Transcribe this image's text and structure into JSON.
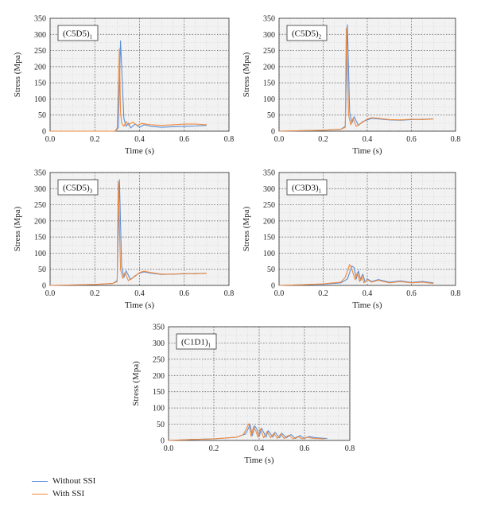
{
  "colors": {
    "without_ssi": "#5b8fd6",
    "with_ssi": "#f08a3e"
  },
  "legend": [
    {
      "label": "Without SSI",
      "color": "#5b8fd6"
    },
    {
      "label": "With SSI",
      "color": "#f08a3e"
    }
  ],
  "chart_data": [
    {
      "type": "line",
      "label_main": "(C5D5)",
      "label_sub": "1",
      "xlabel": "Time (s)",
      "ylabel": "Stress (Mpa)",
      "xlim": [
        0,
        0.8
      ],
      "ylim": [
        0,
        350
      ],
      "xticks": [
        "0.0",
        "0.2",
        "0.4",
        "0.6",
        "0.8"
      ],
      "yticks": [
        "0",
        "50",
        "100",
        "150",
        "200",
        "250",
        "300",
        "350"
      ],
      "grid": true,
      "series": [
        {
          "name": "Without SSI",
          "color": "#5b8fd6",
          "x": [
            0,
            0.29,
            0.305,
            0.315,
            0.32,
            0.33,
            0.34,
            0.35,
            0.36,
            0.38,
            0.4,
            0.42,
            0.45,
            0.5,
            0.55,
            0.6,
            0.65,
            0.7
          ],
          "y": [
            0,
            0,
            10,
            280,
            200,
            40,
            15,
            25,
            10,
            22,
            12,
            20,
            15,
            12,
            14,
            15,
            16,
            18
          ]
        },
        {
          "name": "With SSI",
          "color": "#f08a3e",
          "x": [
            0,
            0.29,
            0.3,
            0.31,
            0.315,
            0.32,
            0.33,
            0.34,
            0.35,
            0.37,
            0.39,
            0.41,
            0.45,
            0.5,
            0.55,
            0.6,
            0.65,
            0.7
          ],
          "y": [
            0,
            0,
            10,
            255,
            60,
            25,
            15,
            30,
            20,
            28,
            18,
            24,
            20,
            18,
            20,
            22,
            22,
            20
          ]
        }
      ]
    },
    {
      "type": "line",
      "label_main": "(C5D5)",
      "label_sub": "2",
      "xlabel": "Time (s)",
      "ylabel": "Stress (Mpa)",
      "xlim": [
        0,
        0.8
      ],
      "ylim": [
        0,
        350
      ],
      "xticks": [
        "0.0",
        "0.2",
        "0.4",
        "0.6",
        "0.8"
      ],
      "yticks": [
        "0",
        "50",
        "100",
        "150",
        "200",
        "250",
        "300",
        "350"
      ],
      "grid": true,
      "series": [
        {
          "name": "Without SSI",
          "color": "#5b8fd6",
          "x": [
            0,
            0.2,
            0.28,
            0.3,
            0.31,
            0.32,
            0.33,
            0.34,
            0.36,
            0.38,
            0.4,
            0.42,
            0.45,
            0.5,
            0.55,
            0.6,
            0.65,
            0.7
          ],
          "y": [
            0,
            3,
            6,
            15,
            330,
            60,
            25,
            45,
            18,
            30,
            35,
            40,
            38,
            35,
            34,
            36,
            37,
            38
          ]
        },
        {
          "name": "With SSI",
          "color": "#f08a3e",
          "x": [
            0,
            0.2,
            0.28,
            0.3,
            0.305,
            0.315,
            0.325,
            0.335,
            0.35,
            0.38,
            0.4,
            0.42,
            0.45,
            0.5,
            0.55,
            0.6,
            0.65,
            0.7
          ],
          "y": [
            0,
            3,
            6,
            12,
            320,
            50,
            20,
            40,
            15,
            28,
            38,
            42,
            40,
            36,
            35,
            37,
            36,
            38
          ]
        }
      ]
    },
    {
      "type": "line",
      "label_main": "(C5D5)",
      "label_sub": "3",
      "xlabel": "Time (s)",
      "ylabel": "Stress (Mpa)",
      "xlim": [
        0,
        0.8
      ],
      "ylim": [
        0,
        350
      ],
      "xticks": [
        "0.0",
        "0.2",
        "0.4",
        "0.6",
        "0.8"
      ],
      "yticks": [
        "0",
        "50",
        "100",
        "150",
        "200",
        "250",
        "300",
        "350"
      ],
      "grid": true,
      "series": [
        {
          "name": "Without SSI",
          "color": "#5b8fd6",
          "x": [
            0,
            0.2,
            0.28,
            0.3,
            0.31,
            0.32,
            0.33,
            0.34,
            0.36,
            0.38,
            0.4,
            0.42,
            0.45,
            0.5,
            0.55,
            0.6,
            0.65,
            0.7
          ],
          "y": [
            0,
            3,
            6,
            15,
            328,
            60,
            25,
            45,
            18,
            30,
            38,
            42,
            38,
            34,
            35,
            36,
            37,
            38
          ]
        },
        {
          "name": "With SSI",
          "color": "#f08a3e",
          "x": [
            0,
            0.2,
            0.28,
            0.3,
            0.305,
            0.315,
            0.325,
            0.335,
            0.35,
            0.38,
            0.4,
            0.42,
            0.45,
            0.5,
            0.55,
            0.6,
            0.65,
            0.7
          ],
          "y": [
            0,
            3,
            6,
            12,
            322,
            50,
            22,
            40,
            15,
            28,
            40,
            44,
            40,
            35,
            35,
            37,
            36,
            38
          ]
        }
      ]
    },
    {
      "type": "line",
      "label_main": "(C3D3)",
      "label_sub": "1",
      "xlabel": "Time (s)",
      "ylabel": "Stress (Mpa)",
      "xlim": [
        0,
        0.8
      ],
      "ylim": [
        0,
        350
      ],
      "xticks": [
        "0.0",
        "0.2",
        "0.4",
        "0.6",
        "0.8"
      ],
      "yticks": [
        "0",
        "50",
        "100",
        "150",
        "200",
        "250",
        "300",
        "350"
      ],
      "grid": true,
      "series": [
        {
          "name": "Without SSI",
          "color": "#5b8fd6",
          "x": [
            0,
            0.1,
            0.2,
            0.28,
            0.31,
            0.33,
            0.34,
            0.35,
            0.36,
            0.37,
            0.38,
            0.39,
            0.4,
            0.42,
            0.45,
            0.5,
            0.55,
            0.6,
            0.65,
            0.7
          ],
          "y": [
            0,
            2,
            4,
            8,
            20,
            60,
            55,
            20,
            45,
            15,
            35,
            10,
            20,
            12,
            18,
            10,
            14,
            9,
            12,
            8
          ]
        },
        {
          "name": "With SSI",
          "color": "#f08a3e",
          "x": [
            0,
            0.1,
            0.2,
            0.28,
            0.3,
            0.32,
            0.33,
            0.345,
            0.355,
            0.365,
            0.375,
            0.385,
            0.4,
            0.42,
            0.45,
            0.5,
            0.55,
            0.6,
            0.65,
            0.7
          ],
          "y": [
            0,
            2,
            5,
            10,
            25,
            65,
            50,
            18,
            40,
            12,
            30,
            8,
            18,
            10,
            16,
            8,
            12,
            8,
            10,
            6
          ]
        }
      ]
    },
    {
      "type": "line",
      "label_main": "(C1D1)",
      "label_sub": "1",
      "xlabel": "Time (s)",
      "ylabel": "Stress (Mpa)",
      "xlim": [
        0,
        0.8
      ],
      "ylim": [
        0,
        350
      ],
      "xticks": [
        "0.0",
        "0.2",
        "0.4",
        "0.6",
        "0.8"
      ],
      "yticks": [
        "0",
        "50",
        "100",
        "150",
        "200",
        "250",
        "300",
        "350"
      ],
      "grid": true,
      "series": [
        {
          "name": "Without SSI",
          "color": "#5b8fd6",
          "x": [
            0,
            0.1,
            0.2,
            0.3,
            0.34,
            0.36,
            0.37,
            0.38,
            0.39,
            0.4,
            0.41,
            0.43,
            0.44,
            0.46,
            0.47,
            0.49,
            0.5,
            0.52,
            0.54,
            0.56,
            0.58,
            0.6,
            0.62,
            0.65,
            0.7
          ],
          "y": [
            0,
            3,
            5,
            10,
            20,
            48,
            15,
            45,
            35,
            12,
            38,
            10,
            30,
            10,
            25,
            8,
            22,
            8,
            18,
            6,
            15,
            6,
            12,
            8,
            6
          ]
        },
        {
          "name": "With SSI",
          "color": "#f08a3e",
          "x": [
            0,
            0.1,
            0.2,
            0.3,
            0.33,
            0.355,
            0.365,
            0.375,
            0.385,
            0.395,
            0.405,
            0.42,
            0.435,
            0.45,
            0.465,
            0.48,
            0.495,
            0.51,
            0.53,
            0.55,
            0.57,
            0.59,
            0.61,
            0.64,
            0.69
          ],
          "y": [
            0,
            3,
            5,
            10,
            18,
            52,
            12,
            42,
            30,
            10,
            35,
            8,
            28,
            8,
            22,
            6,
            20,
            6,
            16,
            5,
            12,
            5,
            10,
            6,
            5
          ]
        }
      ]
    }
  ]
}
